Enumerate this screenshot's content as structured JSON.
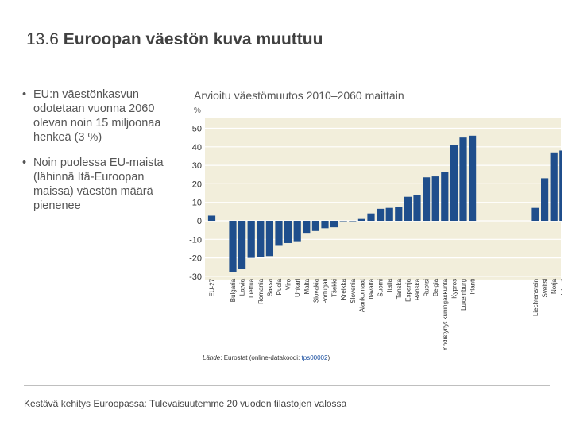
{
  "slide": {
    "title_number": "13.6",
    "title_text": "Euroopan väestön kuva muuttuu",
    "bullets": [
      "EU:n väestönkasvun odotetaan vuonna 2060 olevan noin 15 miljoonaa henkeä (3 %)",
      "Noin puolessa EU-maista (lähinnä Itä-Euroopan maissa) väestön määrä pienenee"
    ],
    "chart_title": "Arvioitu väestömuutos 2010–2060 maittain",
    "unit": "%",
    "source_label": "Lähde",
    "source_text": ": Eurostat (online-datakoodi: ",
    "source_code": "tps00002",
    "source_end": ")",
    "footer": "Kestävä kehitys Euroopassa: Tulevaisuutemme 20 vuoden tilastojen valossa"
  },
  "chart_data": {
    "type": "bar",
    "title": "Arvioitu väestömuutos 2010–2060 maittain",
    "ylabel": "%",
    "ylim": [
      -30,
      50
    ],
    "yticks": [
      -30,
      -20,
      -10,
      0,
      10,
      20,
      30,
      40,
      50
    ],
    "grid": true,
    "groups": [
      {
        "categories": [
          "EU-27"
        ],
        "values": [
          2.8
        ]
      },
      {
        "categories": [
          "Bulgaria",
          "Latvia",
          "Liettua",
          "Romania",
          "Saksa",
          "Puola",
          "Viro",
          "Unkari",
          "Malta",
          "Slovakia",
          "Portugali",
          "Tšekki",
          "Kreikka",
          "Slovenia",
          "Alankomaat",
          "Itävalta",
          "Suomi",
          "Italia",
          "Tanska",
          "Espanja",
          "Ranska",
          "Ruotsi",
          "Belgia",
          "Yhdistynyt kuningaskunta",
          "Kypros",
          "Luxemburg",
          "Irlanti"
        ],
        "values": [
          -27.5,
          -26,
          -20,
          -19.5,
          -19,
          -13.5,
          -12,
          -11,
          -6.5,
          -5.5,
          -4,
          -3.5,
          0,
          0,
          1,
          4,
          6.5,
          7,
          7.5,
          13,
          14,
          23.5,
          24,
          26.5,
          41,
          45,
          46
        ]
      },
      {
        "categories": [
          "Liechtenstein",
          "Sveitsi",
          "Norja",
          "Islanti"
        ],
        "values": [
          7,
          23,
          37,
          38
        ]
      }
    ],
    "colors": {
      "bar": "#1f4e8c",
      "background": "#f2eedb",
      "grid": "#ffffff",
      "axis_text": "#333333"
    }
  }
}
